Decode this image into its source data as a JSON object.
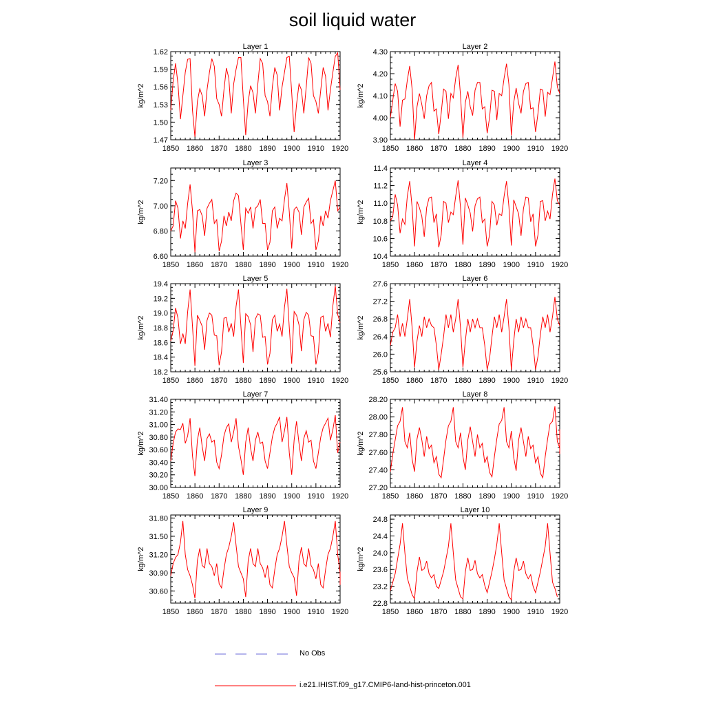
{
  "title": "soil liquid water",
  "legend": {
    "obs_label": "No Obs",
    "obs_color": "#6a6ad8",
    "model_label": "i.e21.IHIST.f09_g17.CMIP6-land-hist-princeton.001",
    "model_color": "#ff0000"
  },
  "chart_data": [
    {
      "type": "line",
      "title": "Layer 1",
      "ylabel": "kg/m^2",
      "xlim": [
        1850,
        1920
      ],
      "ylim": [
        1.47,
        1.62
      ],
      "xticks": [
        "1850",
        "1860",
        "1870",
        "1880",
        "1890",
        "1900",
        "1910",
        "1920"
      ],
      "yticks": [
        "1.47",
        "1.50",
        "1.53",
        "1.56",
        "1.59",
        "1.62"
      ],
      "start_year": 1850,
      "values": [
        1.52,
        1.57,
        1.6,
        1.565,
        1.505,
        1.545,
        1.585,
        1.607,
        1.608,
        1.52,
        1.475,
        1.535,
        1.557,
        1.545,
        1.51,
        1.555,
        1.585,
        1.608,
        1.595,
        1.54,
        1.53,
        1.51,
        1.555,
        1.592,
        1.575,
        1.515,
        1.565,
        1.59,
        1.61,
        1.61,
        1.54,
        1.478,
        1.535,
        1.562,
        1.55,
        1.515,
        1.565,
        1.608,
        1.6,
        1.545,
        1.535,
        1.51,
        1.56,
        1.593,
        1.58,
        1.52,
        1.56,
        1.585,
        1.61,
        1.612,
        1.55,
        1.483,
        1.53,
        1.565,
        1.555,
        1.515,
        1.56,
        1.61,
        1.6,
        1.545,
        1.535,
        1.515,
        1.555,
        1.593,
        1.578,
        1.52,
        1.555,
        1.585,
        1.612,
        1.618,
        1.555
      ],
      "series": [
        {
          "name": "i.e21.IHIST.f09_g17.CMIP6-land-hist-princeton.001"
        }
      ]
    },
    {
      "type": "line",
      "title": "Layer 2",
      "ylabel": "kg/m^2",
      "xlim": [
        1850,
        1920
      ],
      "ylim": [
        3.9,
        4.3
      ],
      "xticks": [
        "1850",
        "1860",
        "1870",
        "1880",
        "1890",
        "1900",
        "1910",
        "1920"
      ],
      "yticks": [
        "3.90",
        "4.00",
        "4.10",
        "4.20",
        "4.30"
      ],
      "start_year": 1850,
      "values": [
        4.0,
        4.08,
        4.155,
        4.12,
        3.96,
        4.08,
        4.085,
        4.17,
        4.235,
        4.13,
        3.9,
        4.05,
        4.11,
        4.06,
        3.995,
        4.1,
        4.145,
        4.16,
        4.03,
        4.04,
        3.925,
        4.02,
        4.13,
        4.12,
        3.995,
        4.11,
        4.09,
        4.18,
        4.24,
        4.1,
        3.91,
        4.07,
        4.12,
        4.05,
        4.01,
        4.125,
        4.16,
        4.16,
        4.04,
        4.05,
        3.93,
        4.0,
        4.125,
        4.12,
        3.99,
        4.11,
        4.1,
        4.18,
        4.245,
        4.15,
        3.92,
        4.07,
        4.135,
        4.065,
        4.02,
        4.12,
        4.155,
        4.16,
        4.04,
        4.045,
        3.935,
        4.02,
        4.13,
        4.125,
        4.005,
        4.115,
        4.105,
        4.18,
        4.255,
        4.14,
        4.11
      ],
      "series": [
        {
          "name": "i.e21.IHIST.f09_g17.CMIP6-land-hist-princeton.001"
        }
      ]
    },
    {
      "type": "line",
      "title": "Layer 3",
      "ylabel": "kg/m^2",
      "xlim": [
        1850,
        1920
      ],
      "ylim": [
        6.6,
        7.3
      ],
      "xticks": [
        "1850",
        "1860",
        "1870",
        "1880",
        "1890",
        "1900",
        "1910",
        "1920"
      ],
      "yticks": [
        "6.60",
        "6.80",
        "7.00",
        "7.20"
      ],
      "start_year": 1850,
      "values": [
        6.8,
        6.84,
        7.04,
        6.98,
        6.74,
        6.88,
        6.82,
        7.02,
        7.17,
        6.96,
        6.63,
        6.96,
        6.97,
        6.92,
        6.76,
        6.98,
        7.02,
        7.05,
        6.86,
        6.89,
        6.64,
        6.72,
        6.92,
        6.84,
        6.95,
        6.88,
        7.04,
        7.1,
        7.08,
        6.86,
        6.65,
        6.98,
        6.94,
        6.99,
        6.82,
        6.98,
        7.0,
        7.05,
        6.86,
        6.86,
        6.65,
        6.71,
        6.96,
        6.99,
        6.82,
        6.9,
        6.88,
        7.05,
        7.18,
        6.95,
        6.66,
        6.97,
        6.99,
        6.95,
        6.77,
        6.99,
        7.03,
        7.06,
        6.86,
        6.89,
        6.65,
        6.72,
        6.92,
        6.84,
        6.96,
        6.9,
        7.04,
        7.12,
        7.2,
        6.96,
        6.99
      ],
      "series": [
        {
          "name": "i.e21.IHIST.f09_g17.CMIP6-land-hist-princeton.001"
        }
      ]
    },
    {
      "type": "line",
      "title": "Layer 4",
      "ylabel": "kg/m^2",
      "xlim": [
        1850,
        1920
      ],
      "ylim": [
        10.4,
        11.4
      ],
      "xticks": [
        "1850",
        "1860",
        "1870",
        "1880",
        "1890",
        "1900",
        "1910",
        "1920"
      ],
      "yticks": [
        "10.4",
        "10.6",
        "10.8",
        "11.0",
        "11.2",
        "11.4"
      ],
      "start_year": 1850,
      "values": [
        10.8,
        10.85,
        11.1,
        10.98,
        10.66,
        10.82,
        10.76,
        11.08,
        11.25,
        10.95,
        10.51,
        11.02,
        10.95,
        10.85,
        10.62,
        10.95,
        11.06,
        11.07,
        10.78,
        10.88,
        10.5,
        10.64,
        11.02,
        11.0,
        10.78,
        10.9,
        10.87,
        11.08,
        11.26,
        10.95,
        10.53,
        11.06,
        10.98,
        10.89,
        10.68,
        10.97,
        11.05,
        11.07,
        10.78,
        10.82,
        10.51,
        10.64,
        11.02,
        10.98,
        10.75,
        10.88,
        10.86,
        11.08,
        11.25,
        10.96,
        10.52,
        11.04,
        10.96,
        10.88,
        10.63,
        10.94,
        11.07,
        11.06,
        10.79,
        10.88,
        10.51,
        10.64,
        11.02,
        11.03,
        10.8,
        10.91,
        10.82,
        11.1,
        11.28,
        11.03,
        10.98
      ],
      "series": [
        {
          "name": "i.e21.IHIST.f09_g17.CMIP6-land-hist-princeton.001"
        }
      ]
    },
    {
      "type": "line",
      "title": "Layer 5",
      "ylabel": "kg/m^2",
      "xlim": [
        1850,
        1920
      ],
      "ylim": [
        18.2,
        19.4
      ],
      "xticks": [
        "1850",
        "1860",
        "1870",
        "1880",
        "1890",
        "1900",
        "1910",
        "1920"
      ],
      "yticks": [
        "18.2",
        "18.4",
        "18.6",
        "18.8",
        "19.0",
        "19.2",
        "19.4"
      ],
      "start_year": 1850,
      "values": [
        18.62,
        18.76,
        19.07,
        18.93,
        18.58,
        18.72,
        18.58,
        19.02,
        19.32,
        18.82,
        18.28,
        18.97,
        18.9,
        18.82,
        18.5,
        18.9,
        19.0,
        18.97,
        18.7,
        18.69,
        18.29,
        18.47,
        18.93,
        18.94,
        18.74,
        18.86,
        18.68,
        19.09,
        19.32,
        18.82,
        18.32,
        18.99,
        18.95,
        18.84,
        18.47,
        18.92,
        18.99,
        18.97,
        18.67,
        18.68,
        18.3,
        18.45,
        18.91,
        18.97,
        18.75,
        18.85,
        18.68,
        19.08,
        19.33,
        18.8,
        18.31,
        19.02,
        18.97,
        18.84,
        18.48,
        18.91,
        19.01,
        18.97,
        18.69,
        18.68,
        18.3,
        18.46,
        18.94,
        18.96,
        18.75,
        18.86,
        18.67,
        19.1,
        19.37,
        18.98,
        18.87
      ],
      "series": [
        {
          "name": "i.e21.IHIST.f09_g17.CMIP6-land-hist-princeton.001"
        }
      ]
    },
    {
      "type": "line",
      "title": "Layer 6",
      "ylabel": "kg/m^2",
      "xlim": [
        1850,
        1920
      ],
      "ylim": [
        25.6,
        27.6
      ],
      "xticks": [
        "1850",
        "1860",
        "1870",
        "1880",
        "1890",
        "1900",
        "1910",
        "1920"
      ],
      "yticks": [
        "25.6",
        "26.0",
        "26.4",
        "26.8",
        "27.2",
        "27.6"
      ],
      "start_year": 1850,
      "values": [
        26.2,
        26.5,
        26.6,
        26.9,
        26.4,
        26.7,
        26.4,
        26.8,
        27.25,
        26.6,
        25.7,
        26.3,
        26.65,
        26.4,
        26.85,
        26.6,
        26.8,
        26.65,
        26.6,
        26.2,
        25.65,
        26.0,
        26.4,
        26.9,
        26.6,
        26.9,
        26.5,
        26.8,
        27.25,
        26.6,
        25.7,
        26.3,
        26.8,
        26.5,
        26.8,
        26.6,
        26.8,
        26.6,
        26.6,
        26.2,
        25.65,
        25.9,
        26.4,
        26.85,
        26.6,
        26.9,
        26.5,
        26.85,
        27.25,
        26.6,
        25.65,
        26.3,
        26.8,
        26.5,
        26.85,
        26.6,
        26.8,
        26.6,
        26.6,
        26.2,
        25.65,
        25.95,
        26.45,
        26.85,
        26.6,
        26.9,
        26.5,
        26.85,
        27.3,
        26.8,
        26.65
      ],
      "series": [
        {
          "name": "i.e21.IHIST.f09_g17.CMIP6-land-hist-princeton.001"
        }
      ]
    },
    {
      "type": "line",
      "title": "Layer 7",
      "ylabel": "kg/m^2",
      "xlim": [
        1850,
        1920
      ],
      "ylim": [
        30.0,
        31.4
      ],
      "xticks": [
        "1850",
        "1860",
        "1870",
        "1880",
        "1890",
        "1900",
        "1910",
        "1920"
      ],
      "yticks": [
        "30.00",
        "30.20",
        "30.40",
        "30.60",
        "30.80",
        "31.00",
        "31.20",
        "31.40"
      ],
      "start_year": 1850,
      "values": [
        30.42,
        30.7,
        30.88,
        30.93,
        30.92,
        31.02,
        30.7,
        30.82,
        31.1,
        30.5,
        30.18,
        30.75,
        30.95,
        30.65,
        30.42,
        30.78,
        30.85,
        30.72,
        30.75,
        30.4,
        30.3,
        30.52,
        30.82,
        30.95,
        31.01,
        30.72,
        30.88,
        31.1,
        30.65,
        30.45,
        30.2,
        30.72,
        30.95,
        30.62,
        30.42,
        30.75,
        30.88,
        30.7,
        30.72,
        30.42,
        30.3,
        30.55,
        30.8,
        30.95,
        31.02,
        31.12,
        30.72,
        30.9,
        31.12,
        30.55,
        30.2,
        30.75,
        31.05,
        30.7,
        30.42,
        30.78,
        30.9,
        30.72,
        30.75,
        30.42,
        30.3,
        30.55,
        30.8,
        30.95,
        31.02,
        31.1,
        30.75,
        30.92,
        31.15,
        30.55,
        30.72
      ],
      "series": [
        {
          "name": "i.e21.IHIST.f09_g17.CMIP6-land-hist-princeton.001"
        }
      ]
    },
    {
      "type": "line",
      "title": "Layer 8",
      "ylabel": "kg/m^2",
      "xlim": [
        1850,
        1920
      ],
      "ylim": [
        27.2,
        28.2
      ],
      "xticks": [
        "1850",
        "1860",
        "1870",
        "1880",
        "1890",
        "1900",
        "1910",
        "1920"
      ],
      "yticks": [
        "27.20",
        "27.40",
        "27.60",
        "27.80",
        "28.00",
        "28.20"
      ],
      "start_year": 1850,
      "values": [
        27.38,
        27.58,
        27.74,
        27.9,
        27.95,
        28.11,
        27.72,
        27.65,
        27.82,
        27.52,
        27.38,
        27.75,
        27.88,
        27.74,
        27.55,
        27.78,
        27.64,
        27.68,
        27.48,
        27.55,
        27.35,
        27.31,
        27.52,
        27.74,
        27.9,
        27.95,
        28.11,
        27.72,
        27.65,
        27.82,
        27.55,
        27.4,
        27.74,
        27.89,
        27.72,
        27.55,
        27.8,
        27.65,
        27.7,
        27.48,
        27.55,
        27.37,
        27.32,
        27.55,
        27.75,
        27.92,
        27.96,
        28.11,
        27.72,
        27.65,
        27.84,
        27.54,
        27.39,
        27.74,
        27.88,
        27.72,
        27.55,
        27.78,
        27.64,
        27.68,
        27.48,
        27.55,
        27.36,
        27.31,
        27.55,
        27.75,
        27.92,
        27.95,
        28.12,
        27.72,
        27.65,
        27.86,
        27.58
      ],
      "series": [
        {
          "name": "i.e21.IHIST.f09_g17.CMIP6-land-hist-princeton.001"
        }
      ]
    },
    {
      "type": "line",
      "title": "Layer 9",
      "ylabel": "kg/m^2",
      "xlim": [
        1850,
        1920
      ],
      "ylim": [
        30.4,
        31.85
      ],
      "xticks": [
        "1850",
        "1860",
        "1870",
        "1880",
        "1890",
        "1900",
        "1910",
        "1920"
      ],
      "yticks": [
        "30.60",
        "30.90",
        "31.20",
        "31.50",
        "31.80"
      ],
      "start_year": 1850,
      "values": [
        30.85,
        31.05,
        31.15,
        31.2,
        31.4,
        31.75,
        31.2,
        30.95,
        30.85,
        30.7,
        30.48,
        31.1,
        31.3,
        31.02,
        30.98,
        31.3,
        31.05,
        31.0,
        30.85,
        31.05,
        30.72,
        30.65,
        30.95,
        31.2,
        31.32,
        31.5,
        31.73,
        31.35,
        31.0,
        30.9,
        30.8,
        30.5,
        31.1,
        31.3,
        31.05,
        31.0,
        31.3,
        31.05,
        30.98,
        30.82,
        31.02,
        30.7,
        30.65,
        30.95,
        31.2,
        31.3,
        31.5,
        31.75,
        31.35,
        31.0,
        30.9,
        30.82,
        30.52,
        31.1,
        31.32,
        31.05,
        31.0,
        31.3,
        31.02,
        30.95,
        30.8,
        31.05,
        30.7,
        30.65,
        30.95,
        31.2,
        31.3,
        31.5,
        31.75,
        31.2,
        30.9,
        30.85,
        30.7
      ],
      "series": [
        {
          "name": "i.e21.IHIST.f09_g17.CMIP6-land-hist-princeton.001"
        }
      ]
    },
    {
      "type": "line",
      "title": "Layer 10",
      "ylabel": "kg/m^2",
      "xlim": [
        1850,
        1920
      ],
      "ylim": [
        22.8,
        24.9
      ],
      "xticks": [
        "1850",
        "1860",
        "1870",
        "1880",
        "1890",
        "1900",
        "1910",
        "1920"
      ],
      "yticks": [
        "22.8",
        "23.2",
        "23.6",
        "24.0",
        "24.4",
        "24.8"
      ],
      "start_year": 1850,
      "values": [
        23.1,
        23.3,
        23.5,
        23.85,
        24.2,
        24.7,
        24.0,
        23.4,
        23.2,
        23.0,
        22.9,
        23.55,
        23.9,
        23.58,
        23.62,
        23.8,
        23.5,
        23.4,
        23.48,
        23.2,
        23.15,
        23.35,
        23.55,
        23.85,
        24.15,
        24.7,
        24.0,
        23.35,
        23.15,
        22.95,
        22.9,
        23.55,
        23.88,
        23.58,
        23.6,
        23.82,
        23.5,
        23.4,
        23.48,
        23.22,
        23.05,
        23.3,
        23.55,
        23.85,
        24.2,
        24.7,
        24.0,
        23.35,
        23.15,
        22.95,
        22.88,
        23.55,
        23.88,
        23.58,
        23.6,
        23.8,
        23.5,
        23.38,
        23.48,
        23.2,
        23.05,
        23.3,
        23.55,
        23.85,
        24.15,
        24.7,
        24.0,
        23.3,
        23.15,
        22.95
      ],
      "series": [
        {
          "name": "i.e21.IHIST.f09_g17.CMIP6-land-hist-princeton.001"
        }
      ]
    }
  ]
}
